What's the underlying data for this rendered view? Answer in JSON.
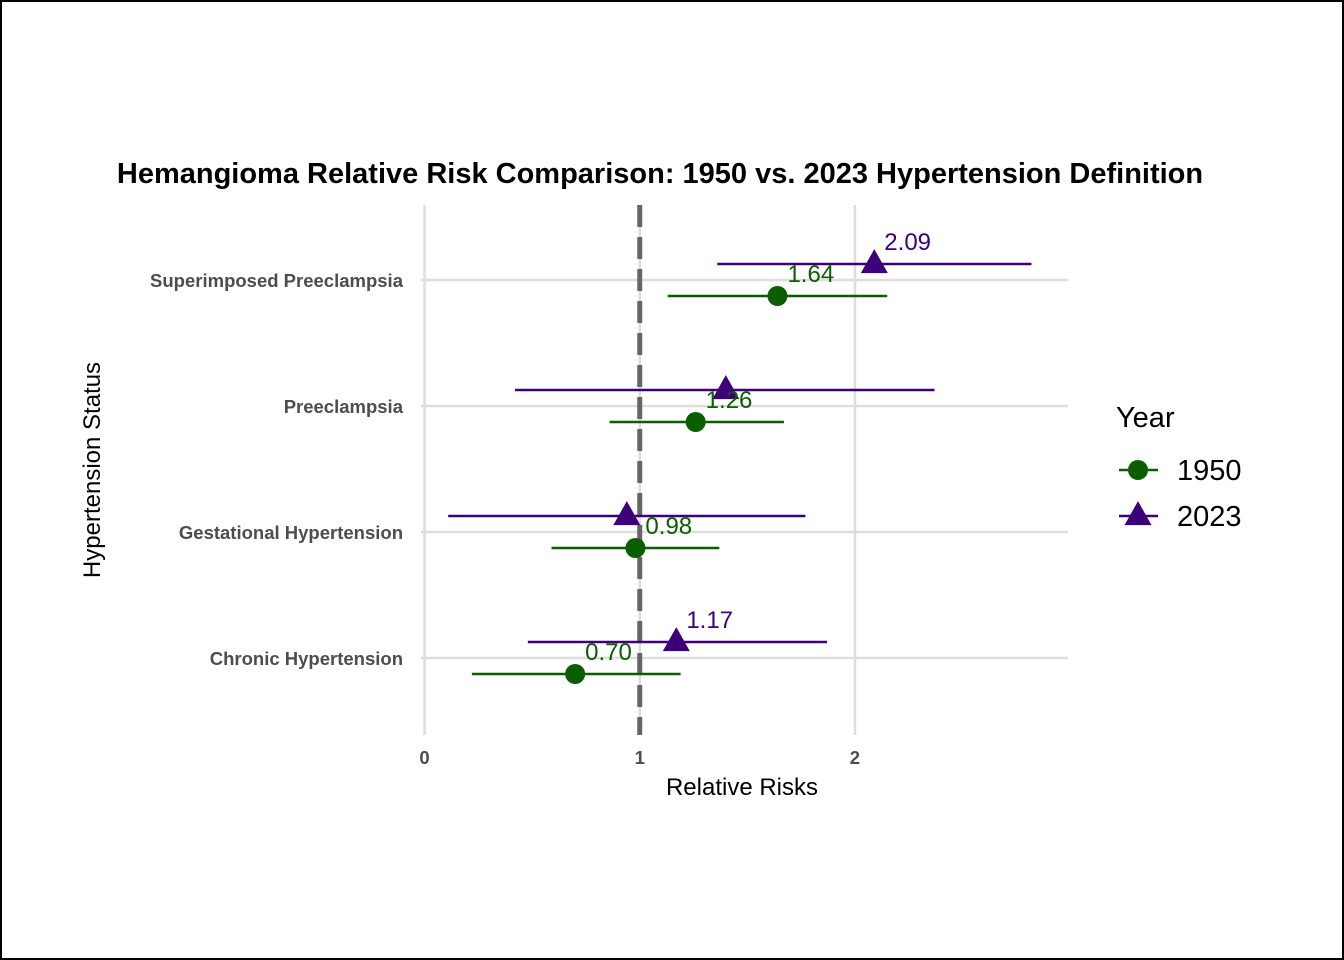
{
  "chart_data": {
    "type": "scatter",
    "title": "Hemangioma Relative Risk Comparison: 1950 vs. 2023 Hypertension Definition",
    "xlabel": "Relative Risks",
    "ylabel": "Hypertension Status",
    "xlim": [
      -0.1,
      2.99
    ],
    "x_ticks": [
      "0",
      "1",
      "2"
    ],
    "categories": [
      "Chronic Hypertension",
      "Gestational Hypertension",
      "Preeclampsia",
      "Superimposed Preeclampsia"
    ],
    "reference_line": {
      "x": 1,
      "style": "dashed",
      "color": "#666666"
    },
    "grid": true,
    "legend": {
      "title": "Year",
      "position": "right"
    },
    "series": [
      {
        "name": "1950",
        "color": "#0b5e00",
        "marker": "circle",
        "values": [
          0.7,
          0.98,
          1.26,
          1.64
        ],
        "ci_low": [
          0.22,
          0.59,
          0.86,
          1.13
        ],
        "ci_high": [
          1.19,
          1.37,
          1.67,
          2.15
        ],
        "labels": [
          "0.70",
          "0.98",
          "1.26",
          "1.64"
        ]
      },
      {
        "name": "2023",
        "color": "#3d0078",
        "marker": "triangle",
        "values": [
          1.17,
          0.94,
          1.4,
          2.09
        ],
        "ci_low": [
          0.48,
          0.11,
          0.42,
          1.36
        ],
        "ci_high": [
          1.87,
          1.77,
          2.37,
          2.82
        ],
        "labels": [
          "1.17",
          "",
          "",
          "2.09"
        ]
      }
    ]
  }
}
